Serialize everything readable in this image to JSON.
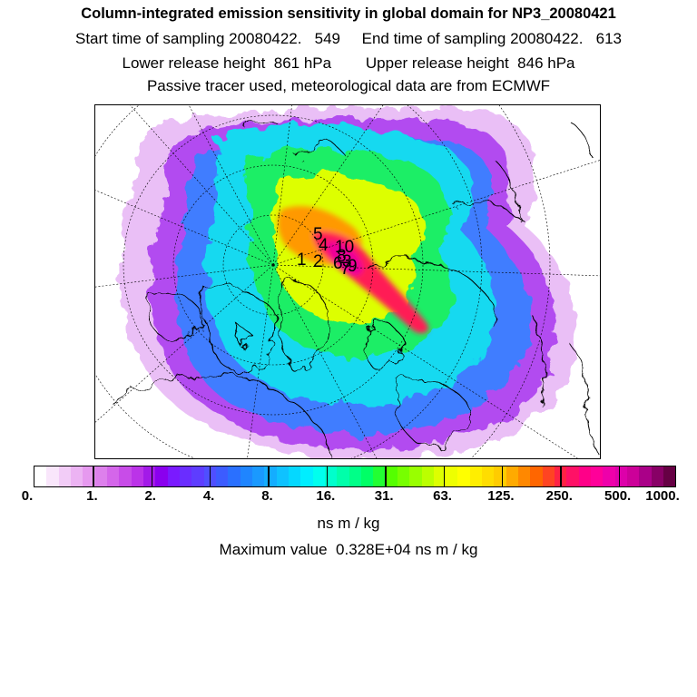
{
  "header": {
    "title": "Column-integrated emission sensitivity in global domain for NP3_20080421",
    "line1": "Start time of sampling 20080422.   549     End time of sampling 20080422.   613",
    "line2": "Lower release height  861 hPa        Upper release height  846 hPa",
    "line3": "Passive tracer used, meteorological data are from ECMWF"
  },
  "colors": {
    "scale": [
      "#ffffff",
      "#f9e6fb",
      "#f2ccf7",
      "#ecb3f3",
      "#e699ef",
      "#dd80ec",
      "#d466ea",
      "#c84ce8",
      "#bb33e8",
      "#a31ae8",
      "#8a00ee",
      "#7a1aff",
      "#6a2dff",
      "#5e3dff",
      "#4f4fff",
      "#3c5cff",
      "#2a70ff",
      "#1f85ff",
      "#1a99ff",
      "#14adff",
      "#0fc2ff",
      "#05d8ff",
      "#00eeff",
      "#00ffee",
      "#00ffcc",
      "#00ffaa",
      "#00ff88",
      "#00ff66",
      "#22ff33",
      "#55ff00",
      "#77ff00",
      "#99ff00",
      "#bbff00",
      "#ddff00",
      "#eeff00",
      "#ffff00",
      "#ffee00",
      "#ffdd00",
      "#ffcc00",
      "#ffaa00",
      "#ff8800",
      "#ff6600",
      "#ff4422",
      "#ff2244",
      "#ff1166",
      "#ff0088",
      "#ff0099",
      "#ee00aa",
      "#dd00aa",
      "#cc0099",
      "#aa0088",
      "#880066",
      "#660044"
    ]
  },
  "colorbar": {
    "ticks": [
      "0.",
      "1.",
      "2.",
      "4.",
      "8.",
      "16.",
      "31.",
      "63.",
      "125.",
      "250.",
      "500.",
      "1000."
    ]
  },
  "units": "ns m / kg",
  "max_value": "Maximum value  0.328E+04 ns m / kg",
  "release_labels": [
    "5",
    "4",
    "2",
    "1",
    "10",
    "8",
    "6",
    "3",
    "9",
    "7"
  ]
}
